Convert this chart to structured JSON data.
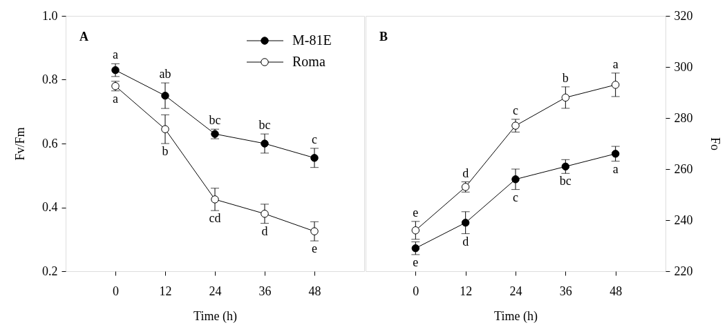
{
  "chart_data": [
    {
      "type": "line",
      "xlabel": "Time (h)",
      "ylabel": "Fv/Fm",
      "xlim": [
        -12,
        60
      ],
      "xticks": [
        0,
        12,
        24,
        36,
        48
      ],
      "ylim": [
        0.2,
        1.0
      ],
      "yticks": [
        {
          "value": 0.2,
          "label": "0.2"
        },
        {
          "value": 0.4,
          "label": "0.4"
        },
        {
          "value": 0.6,
          "label": "0.6"
        },
        {
          "value": 0.8,
          "label": "0.8"
        },
        {
          "value": 1.0,
          "label": "1.0"
        }
      ],
      "x": [
        0,
        12,
        24,
        36,
        48
      ],
      "marker": "circle",
      "line_style": "solid",
      "legend": "top right",
      "series": [
        {
          "name": "M-81E",
          "color": "#000000",
          "values": [
            0.83,
            0.75,
            0.63,
            0.6,
            0.555
          ],
          "errors": [
            0.02,
            0.04,
            0.015,
            0.03,
            0.03
          ]
        },
        {
          "name": "Roma",
          "color": "#ffffff",
          "values": [
            0.78,
            0.645,
            0.425,
            0.38,
            0.325
          ],
          "errors": [
            0.015,
            0.045,
            0.035,
            0.03,
            0.03
          ]
        }
      ],
      "annotations": [
        "A",
        {
          "text": "a",
          "x": 0,
          "y": 0.83
        },
        {
          "text": "ab",
          "x": 12,
          "y": 0.75
        },
        {
          "text": "bc",
          "x": 24,
          "y": 0.63
        },
        {
          "text": "bc",
          "x": 36,
          "y": 0.6
        },
        {
          "text": "c",
          "x": 48,
          "y": 0.555
        },
        {
          "text": "a",
          "x": 0,
          "y": 0.78
        },
        {
          "text": "b",
          "x": 12,
          "y": 0.645
        },
        {
          "text": "cd",
          "x": 24,
          "y": 0.425
        },
        {
          "text": "d",
          "x": 36,
          "y": 0.38
        },
        {
          "text": "e",
          "x": 48,
          "y": 0.325
        }
      ]
    },
    {
      "type": "line",
      "xlabel": "Time (h)",
      "ylabel": "Fo",
      "xlim": [
        -12,
        60
      ],
      "xticks": [
        0,
        12,
        24,
        36,
        48
      ],
      "ylim": [
        220,
        320
      ],
      "yticks": [
        220,
        240,
        260,
        280,
        300,
        320
      ],
      "x": [
        0,
        12,
        24,
        36,
        48
      ],
      "marker": "circle",
      "line_style": "solid",
      "series": [
        {
          "color": "#000000",
          "values": [
            229,
            239,
            256,
            261,
            266
          ],
          "errors": [
            2.5,
            4.3,
            4,
            2.7,
            2.9
          ]
        },
        {
          "color": "#ffffff",
          "values": [
            236,
            253,
            277,
            288,
            293
          ],
          "errors": [
            3.5,
            2,
            2.5,
            4.2,
            4.6
          ]
        }
      ],
      "annotations": [
        "B",
        {
          "text": "e",
          "x": 0,
          "y": 236
        },
        {
          "text": "d",
          "x": 12,
          "y": 253
        },
        {
          "text": "c",
          "x": 24,
          "y": 277
        },
        {
          "text": "b",
          "x": 36,
          "y": 288
        },
        {
          "text": "a",
          "x": 48,
          "y": 293
        },
        {
          "text": "e",
          "x": 0,
          "y": 229
        },
        {
          "text": "d",
          "x": 12,
          "y": 239
        },
        {
          "text": "c",
          "x": 24,
          "y": 256
        },
        {
          "text": "bc",
          "x": 36,
          "y": 261
        },
        {
          "text": "a",
          "x": 48,
          "y": 266
        }
      ]
    }
  ]
}
